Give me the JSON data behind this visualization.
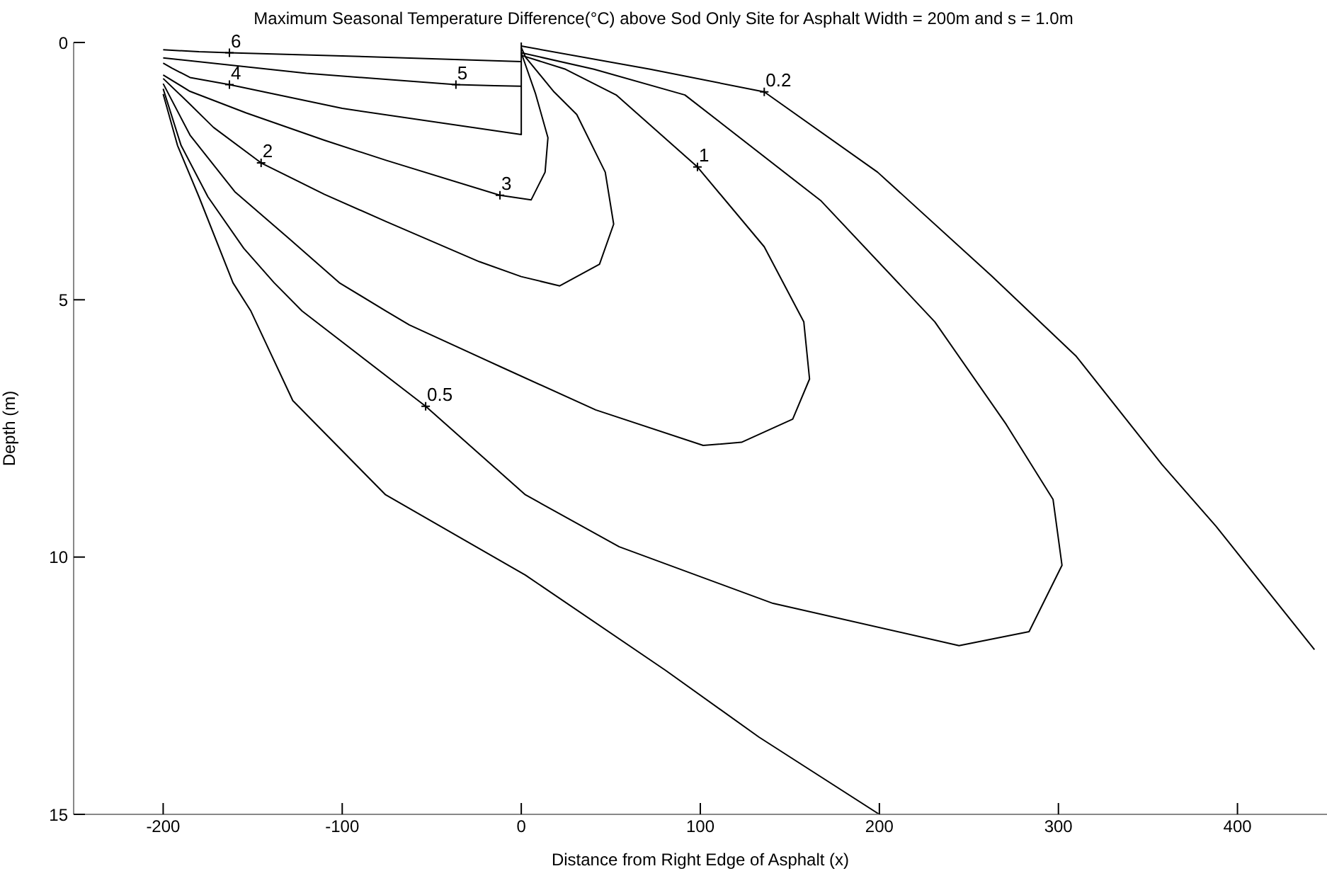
{
  "chart_data": {
    "type": "line",
    "title": "Maximum Seasonal Temperature Difference(°C) above Sod Only Site for Asphalt Width = 200m and s = 1.0m",
    "xlabel": "Distance from Right Edge of Asphalt (x)",
    "ylabel": "Depth (m)",
    "xlim": [
      -250,
      450
    ],
    "xticks": [
      -200,
      -100,
      0,
      100,
      200,
      300,
      400
    ],
    "ylim": [
      15,
      0
    ],
    "yticks": [
      0,
      5,
      10,
      15
    ],
    "grid": false,
    "marker": "none",
    "line_style": "solid",
    "series": [
      {
        "color": "#000000",
        "x": [
          -200,
          -180,
          -163,
          -100,
          0
        ],
        "values": [
          0.14,
          0.18,
          0.2,
          0.26,
          0.37
        ]
      },
      {
        "color": "#000000",
        "x": [
          -200,
          -120,
          -36.5,
          -15,
          0
        ],
        "values": [
          0.3,
          0.6,
          0.82,
          0.84,
          0.85
        ]
      },
      {
        "color": "#000000",
        "x": [
          -200,
          -195,
          -185,
          -163,
          -100,
          0,
          0
        ],
        "values": [
          0.4,
          0.5,
          0.68,
          0.82,
          1.28,
          1.79,
          0
        ]
      },
      {
        "color": "#000000",
        "x": [
          -200,
          -185,
          -153.6,
          -110,
          -75.5,
          -11.9,
          5.5,
          13.3,
          14.9,
          8,
          0
        ],
        "values": [
          0.63,
          0.95,
          1.37,
          1.9,
          2.29,
          2.97,
          3.06,
          2.52,
          1.85,
          1.0,
          0.2
        ]
      },
      {
        "color": "#000000",
        "x": [
          -200,
          -185,
          -171.9,
          -145.3,
          -110,
          -75.5,
          -23.4,
          0,
          21.5,
          43.7,
          51.6,
          46.9,
          31,
          18.3,
          2.5,
          0
        ],
        "values": [
          0.7,
          1.2,
          1.65,
          2.34,
          2.95,
          3.48,
          4.26,
          4.55,
          4.73,
          4.31,
          3.53,
          2.52,
          1.4,
          0.96,
          0.29,
          0.1
        ]
      },
      {
        "color": "#000000",
        "x": [
          -200,
          -185,
          -160,
          -130,
          -101.6,
          -75.5,
          -62.5,
          -10.4,
          41.6,
          101.6,
          123,
          151.6,
          161,
          157.8,
          135.7,
          98.4,
          53,
          24.7,
          0
        ],
        "values": [
          0.8,
          1.8,
          2.9,
          3.8,
          4.67,
          5.22,
          5.49,
          6.32,
          7.14,
          7.83,
          7.77,
          7.32,
          6.54,
          5.43,
          3.97,
          2.42,
          1.02,
          0.52,
          0.25
        ]
      },
      {
        "color": "#000000",
        "x": [
          -200,
          -190,
          -175,
          -155,
          -138,
          -122.4,
          -53.4,
          2.3,
          54.7,
          140.6,
          244.5,
          283.6,
          302,
          297,
          270.8,
          231,
          167.5,
          91.4,
          40.6,
          0
        ],
        "values": [
          0.9,
          2,
          3,
          4,
          4.67,
          5.22,
          7.07,
          8.79,
          9.8,
          10.9,
          11.72,
          11.45,
          10.16,
          8.88,
          7.42,
          5.43,
          3.08,
          1.02,
          0.52,
          0.2
        ]
      },
      {
        "color": "#000000",
        "x": [
          -200,
          -192,
          -180,
          -161,
          -151,
          -127.6,
          -75.8,
          2.3,
          80.5,
          132.8,
          200
        ],
        "values": [
          1.0,
          2,
          3,
          4.67,
          5.22,
          6.96,
          8.79,
          10.35,
          12.2,
          13.5,
          15
        ]
      },
      {
        "color": "#000000",
        "x": [
          0,
          72,
          135.7,
          199,
          262.5,
          310,
          357.8,
          388,
          443
        ],
        "values": [
          0.07,
          0.52,
          0.96,
          2.52,
          4.53,
          6.1,
          8.2,
          9.4,
          11.8
        ]
      }
    ],
    "annotations": [
      {
        "text": "6",
        "x": -163,
        "y": 0.2
      },
      {
        "text": "5",
        "x": -36.5,
        "y": 0.82
      },
      {
        "text": "4",
        "x": -163,
        "y": 0.82
      },
      {
        "text": "3",
        "x": -11.9,
        "y": 2.97
      },
      {
        "text": "2",
        "x": -145.3,
        "y": 2.34
      },
      {
        "text": "1",
        "x": 98.4,
        "y": 2.42
      },
      {
        "text": "0.5",
        "x": -53.4,
        "y": 7.07
      },
      {
        "text": "0.2",
        "x": 135.7,
        "y": 0.96
      }
    ]
  }
}
